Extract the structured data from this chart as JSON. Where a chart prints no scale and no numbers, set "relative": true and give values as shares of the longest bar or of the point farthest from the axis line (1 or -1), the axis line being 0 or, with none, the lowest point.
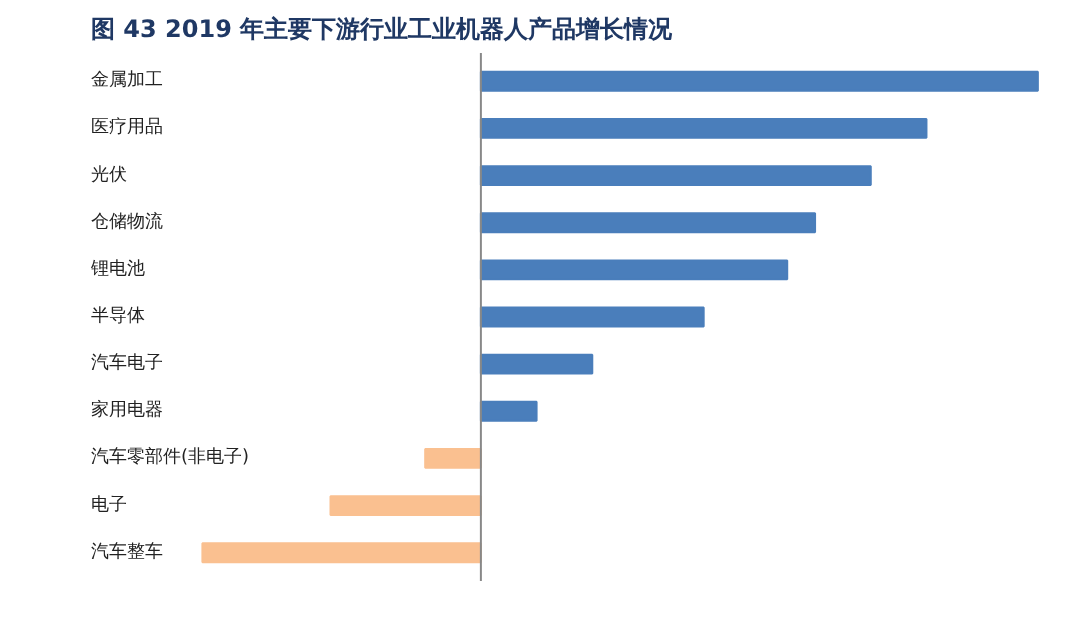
{
  "chart_data": {
    "type": "bar",
    "orientation": "horizontal",
    "relative": true,
    "title": "图 43  2019 年主要下游行业工业机器人产品增长情况",
    "categories": [
      "金属加工",
      "医疗用品",
      "光伏",
      "仓储物流",
      "锂电池",
      "半导体",
      "汽车电子",
      "家用电器",
      "汽车零部件(非电子)",
      "电子",
      "汽车整车"
    ],
    "values": [
      1,
      0.8,
      0.7,
      0.6,
      0.55,
      0.4,
      0.2,
      0.1,
      -0.1,
      -0.27,
      -0.5
    ],
    "colors": [
      "#4a7ebb",
      "#4a7ebb",
      "#4a7ebb",
      "#4a7ebb",
      "#4a7ebb",
      "#4a7ebb",
      "#4a7ebb",
      "#4a7ebb",
      "#fac090",
      "#fac090",
      "#fac090"
    ],
    "grid": false
  }
}
